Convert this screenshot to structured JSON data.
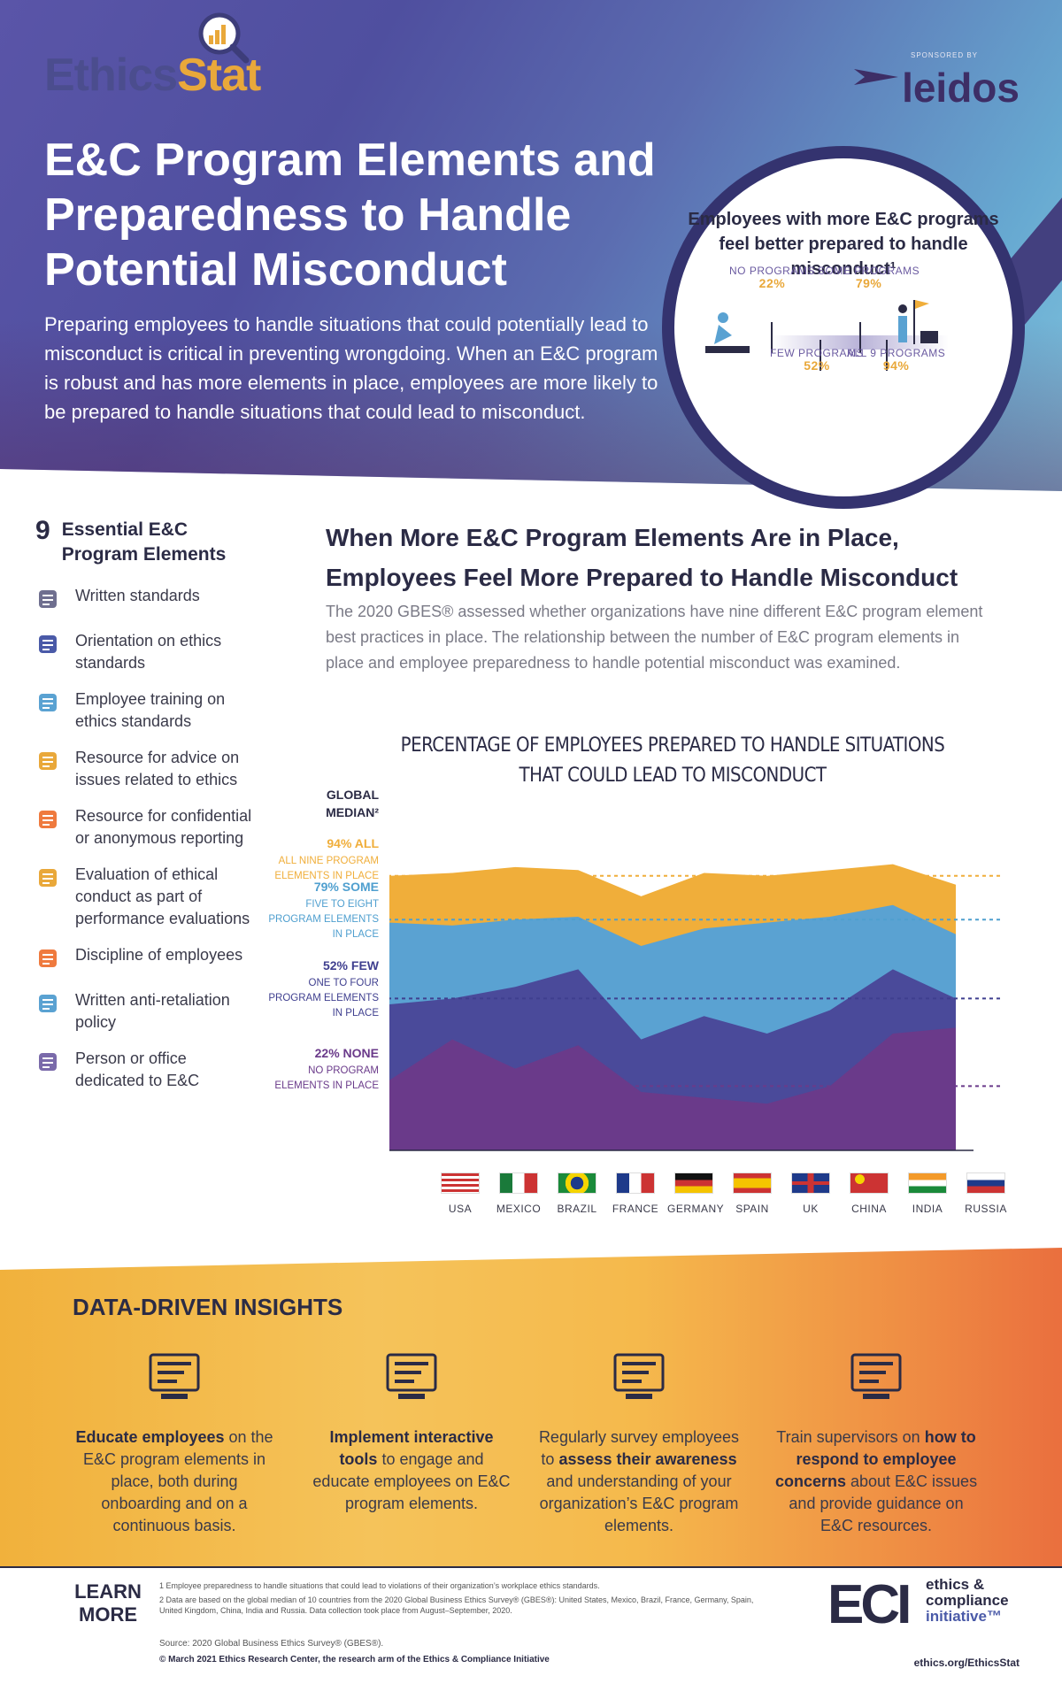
{
  "brand": {
    "logo_part1": "Ethics",
    "logo_part2": "Stat",
    "sponsored_by": "SPONSORED BY",
    "sponsor": "leidos"
  },
  "header": {
    "title": "E&C Program Elements and Preparedness to Handle Potential Misconduct",
    "intro": "Preparing employees to handle situations that could potentially lead to misconduct is critical in preventing wrongdoing. When an E&C program is robust and has more elements in place, employees are more likely to be prepared to handle situations that could lead to misconduct."
  },
  "callout": {
    "heading": "Employees with more E&C programs feel better prepared to handle misconduct¹",
    "items": [
      {
        "label": "NO PROGRAMS",
        "value": "22%"
      },
      {
        "label": "SOME PROGRAMS",
        "value": "79%"
      },
      {
        "label": "FEW PROGRAMS",
        "value": "52%"
      },
      {
        "label": "ALL 9 PROGRAMS",
        "value": "94%"
      }
    ]
  },
  "elements": {
    "count": "9",
    "title": "Essential E&C Program Elements",
    "items": [
      {
        "label": "Written standards",
        "icon": "clipboard-icon"
      },
      {
        "label": "Orientation on ethics standards",
        "icon": "presenter-icon"
      },
      {
        "label": "Employee training on ethics standards",
        "icon": "training-group-icon"
      },
      {
        "label": "Resource for advice on issues related to ethics",
        "icon": "books-icon"
      },
      {
        "label": "Resource for confidential or anonymous reporting",
        "icon": "lock-folder-icon"
      },
      {
        "label": "Evaluation of ethical conduct as part of performance evaluations",
        "icon": "evaluation-grid-icon"
      },
      {
        "label": "Discipline of employees",
        "icon": "stop-hand-icon"
      },
      {
        "label": "Written anti-retaliation policy",
        "icon": "head-gear-icon"
      },
      {
        "label": "Person or office dedicated to E&C",
        "icon": "person-icon"
      }
    ]
  },
  "section": {
    "title": "When More E&C Program Elements Are in Place, Employees Feel More Prepared to Handle Misconduct",
    "body": "The 2020 GBES® assessed whether organizations have nine different E&C program element best practices in place. The relationship between the number of E&C program elements in place and employee preparedness to handle potential misconduct was examined."
  },
  "chart_data": {
    "type": "area",
    "title": "PERCENTAGE OF EMPLOYEES PREPARED TO HANDLE SITUATIONS THAT COULD LEAD TO MISCONDUCT",
    "legend_title": "GLOBAL MEDIAN²",
    "categories": [
      "USA",
      "MEXICO",
      "BRAZIL",
      "FRANCE",
      "GERMANY",
      "SPAIN",
      "UK",
      "CHINA",
      "INDIA",
      "RUSSIA"
    ],
    "ylim": [
      0,
      100
    ],
    "series": [
      {
        "name": "ALL NINE PROGRAM ELEMENTS IN PLACE",
        "color": "#f0ae3a",
        "values": [
          94,
          95,
          97,
          96,
          87,
          95,
          94,
          96,
          98,
          91
        ]
      },
      {
        "name": "FIVE TO EIGHT PROGRAM ELEMENTS IN PLACE",
        "color": "#5aa2d2",
        "values": [
          78,
          77,
          79,
          80,
          70,
          76,
          78,
          80,
          84,
          74
        ]
      },
      {
        "name": "ONE TO FOUR PROGRAM ELEMENTS IN PLACE",
        "color": "#4a4a9a",
        "values": [
          50,
          52,
          56,
          62,
          38,
          46,
          40,
          48,
          62,
          52
        ]
      },
      {
        "name": "NO PROGRAM ELEMENTS IN PLACE",
        "color": "#6a3a8a",
        "values": [
          24,
          38,
          28,
          36,
          20,
          18,
          16,
          22,
          40,
          42
        ]
      }
    ],
    "reference_lines": [
      {
        "value": 94,
        "percent": "94% ALL",
        "desc": "ALL NINE PROGRAM ELEMENTS IN PLACE",
        "color": "#f0ae3a"
      },
      {
        "value": 79,
        "percent": "79% SOME",
        "desc": "FIVE TO EIGHT PROGRAM ELEMENTS IN PLACE",
        "color": "#4f9fcf"
      },
      {
        "value": 52,
        "percent": "52% FEW",
        "desc": "ONE TO FOUR PROGRAM ELEMENTS IN PLACE",
        "color": "#3f3f8f"
      },
      {
        "value": 22,
        "percent": "22% NONE",
        "desc": "NO PROGRAM ELEMENTS IN PLACE",
        "color": "#6a3a8a"
      }
    ]
  },
  "insights": {
    "title": "DATA-DRIVEN INSIGHTS",
    "items": [
      {
        "icon": "classroom-icon",
        "pre": "",
        "bold": "Educate employees",
        "post": " on the E&C program elements in place, both during onboarding and on a continuous basis."
      },
      {
        "icon": "tablet-list-icon",
        "pre": "",
        "bold": "Implement interactive tools",
        "post": " to engage and educate employees on E&C program elements."
      },
      {
        "icon": "whiteboard-icon",
        "pre": "Regularly survey employees to ",
        "bold": "assess their awareness",
        "post": " and understanding of your organization’s E&C program elements."
      },
      {
        "icon": "notepad-pencil-icon",
        "pre": "Train supervisors on ",
        "bold": "how to respond to employee concerns",
        "post": " about E&C issues and provide guidance on E&C resources."
      }
    ]
  },
  "footer": {
    "learn_more": "LEARN MORE",
    "note1": "1   Employee preparedness to handle situations that could lead to violations of their organization’s workplace ethics standards.",
    "note2": "2   Data are based on the global median of 10 countries from the 2020 Global Business Ethics Survey® (GBES®): United States, Mexico, Brazil, France, Germany, Spain, United Kingdom, China, India and Russia. Data collection took place from August–September, 2020.",
    "source": "Source: 2020 Global Business Ethics Survey® (GBES®).",
    "copyright": "© March 2021 Ethics Research Center, the research arm of the Ethics & Compliance Initiative",
    "eci_mark": "ECI",
    "eci_line1": "ethics &",
    "eci_line2": "compliance",
    "eci_line3": "initiative™",
    "website": "ethics.org/EthicsStat"
  }
}
